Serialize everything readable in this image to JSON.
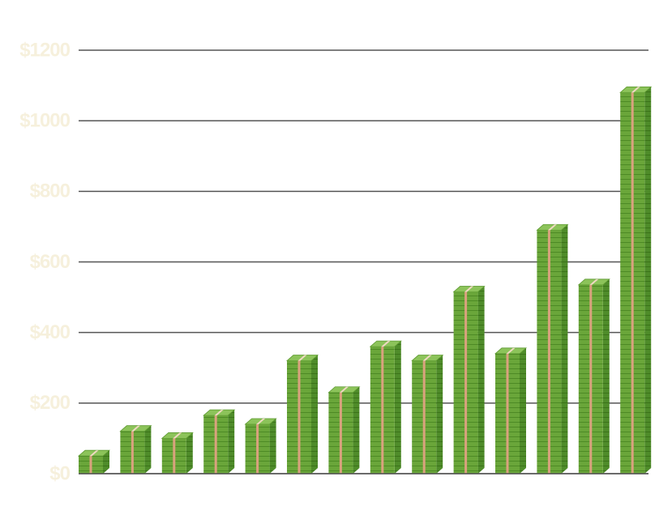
{
  "chart_data": {
    "type": "bar",
    "categories": [
      null,
      null,
      null,
      null,
      null,
      null,
      null,
      null,
      null,
      null,
      null,
      null,
      null,
      null
    ],
    "values": [
      50,
      120,
      100,
      165,
      140,
      320,
      230,
      360,
      320,
      515,
      340,
      690,
      535,
      1080
    ],
    "color": "#6aa63a",
    "ylim": [
      0,
      1200
    ],
    "yticks": [
      {
        "value": 0,
        "label": "$0"
      },
      {
        "value": 200,
        "label": "$200"
      },
      {
        "value": 400,
        "label": "$400"
      },
      {
        "value": 600,
        "label": "$600"
      },
      {
        "value": 800,
        "label": "$800"
      },
      {
        "value": 1000,
        "label": "$1000"
      },
      {
        "value": 1200,
        "label": "$1200"
      }
    ],
    "grid": true
  }
}
